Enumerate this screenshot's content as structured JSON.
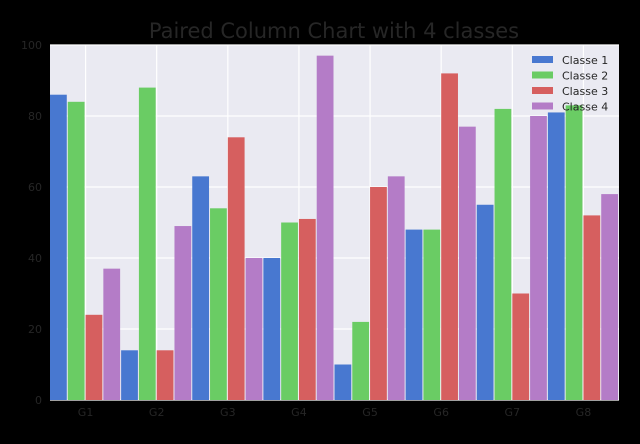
{
  "chart_data": {
    "type": "bar",
    "title": "Paired Column Chart with 4 classes",
    "xlabel": "",
    "ylabel": "",
    "categories": [
      "G1",
      "G2",
      "G3",
      "G4",
      "G5",
      "G6",
      "G7",
      "G8"
    ],
    "ylim": [
      0,
      100
    ],
    "yticks": [
      0,
      20,
      40,
      60,
      80,
      100
    ],
    "grid": true,
    "legend_position": "top-right",
    "series": [
      {
        "name": "Classe 1",
        "color": "#4878d0",
        "values": [
          86,
          14,
          63,
          40,
          10,
          48,
          55,
          81
        ]
      },
      {
        "name": "Classe 2",
        "color": "#6acc64",
        "values": [
          84,
          88,
          54,
          50,
          22,
          48,
          82,
          83
        ]
      },
      {
        "name": "Classe 3",
        "color": "#d65f5f",
        "values": [
          24,
          14,
          74,
          51,
          60,
          92,
          30,
          52
        ]
      },
      {
        "name": "Classe 4",
        "color": "#b47cc7",
        "values": [
          37,
          49,
          40,
          97,
          63,
          77,
          80,
          58
        ]
      }
    ]
  },
  "colors": {
    "figure_background": "#000000",
    "plot_background": "#eaeaf2",
    "grid": "#ffffff",
    "text": "#262626",
    "title": "#262626"
  }
}
